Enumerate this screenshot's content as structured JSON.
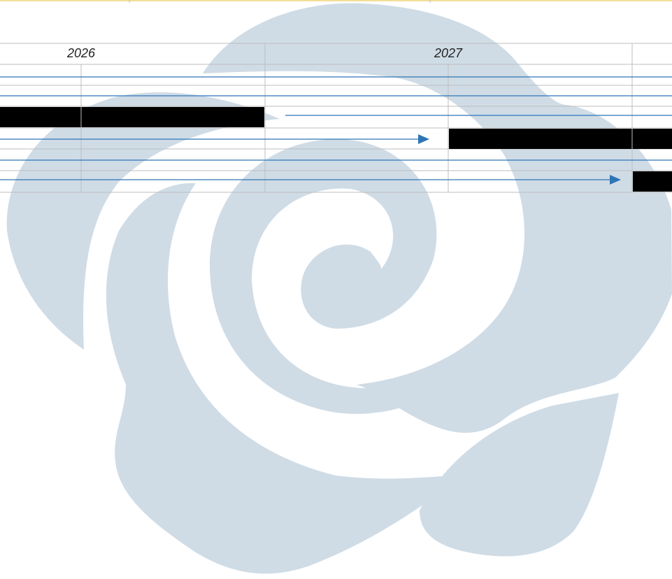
{
  "timeline": {
    "years": [
      "2026",
      "2027"
    ]
  }
}
